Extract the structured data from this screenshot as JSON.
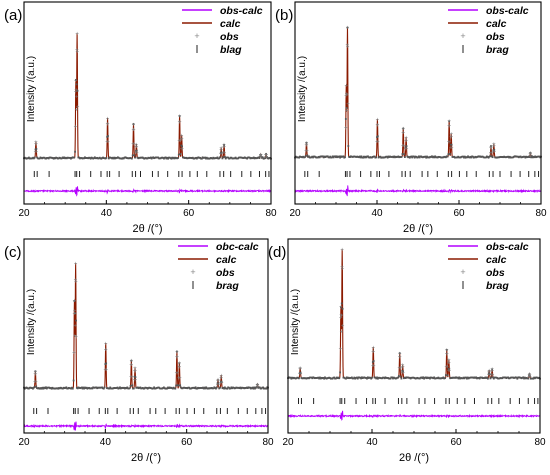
{
  "colors": {
    "obs_calc": "#b400ff",
    "calc": "#8b1a00",
    "obs": "#555555",
    "brag": "#222222",
    "frame": "#000000"
  },
  "chart_data": [
    {
      "type": "line",
      "panel_label": "(a)",
      "xlabel": "2θ /(°)",
      "ylabel": "Intensity /(a.u.)",
      "xlim": [
        20,
        80
      ],
      "x_ticks": [
        "20",
        "40",
        "60",
        "80"
      ],
      "legend_position": "top-right",
      "series": [
        {
          "name": "obs-calc",
          "style": "line"
        },
        {
          "name": "calc",
          "style": "line"
        },
        {
          "name": "obs",
          "style": "markers"
        },
        {
          "name": "blag",
          "style": "ticks"
        }
      ],
      "peaks": [
        {
          "x": 22.9,
          "h": 0.13
        },
        {
          "x": 32.6,
          "h": 0.62
        },
        {
          "x": 32.9,
          "h": 1.0
        },
        {
          "x": 40.3,
          "h": 0.32
        },
        {
          "x": 46.6,
          "h": 0.27
        },
        {
          "x": 47.3,
          "h": 0.11
        },
        {
          "x": 57.8,
          "h": 0.34
        },
        {
          "x": 58.3,
          "h": 0.18
        },
        {
          "x": 67.9,
          "h": 0.08
        },
        {
          "x": 68.6,
          "h": 0.11
        },
        {
          "x": 77.5,
          "h": 0.03
        },
        {
          "x": 78.8,
          "h": 0.03
        }
      ],
      "bragg_positions": [
        22.5,
        23.2,
        26.1,
        32.4,
        32.8,
        33.5,
        36.2,
        38.7,
        40.2,
        40.8,
        43.1,
        46.3,
        47.1,
        48.3,
        51.2,
        52.6,
        54.9,
        57.6,
        58.4,
        60.3,
        62.1,
        64.4,
        67.6,
        68.5,
        70.2,
        72.9,
        75.1,
        77.2,
        78.7,
        79.5
      ]
    },
    {
      "type": "line",
      "panel_label": "(b)",
      "xlabel": "2θ /(°)",
      "ylabel": "Intensity /(a.u.)",
      "xlim": [
        20,
        80
      ],
      "x_ticks": [
        "20",
        "40",
        "60",
        "80"
      ],
      "legend_position": "top-right",
      "series": [
        {
          "name": "obs-calc",
          "style": "line"
        },
        {
          "name": "calc",
          "style": "line"
        },
        {
          "name": "obs",
          "style": "markers"
        },
        {
          "name": "brag",
          "style": "ticks"
        }
      ],
      "peaks": [
        {
          "x": 22.8,
          "h": 0.11
        },
        {
          "x": 32.5,
          "h": 0.55
        },
        {
          "x": 32.8,
          "h": 1.0
        },
        {
          "x": 40.1,
          "h": 0.29
        },
        {
          "x": 46.4,
          "h": 0.22
        },
        {
          "x": 47.1,
          "h": 0.15
        },
        {
          "x": 57.6,
          "h": 0.28
        },
        {
          "x": 58.1,
          "h": 0.18
        },
        {
          "x": 67.8,
          "h": 0.08
        },
        {
          "x": 68.5,
          "h": 0.1
        },
        {
          "x": 77.4,
          "h": 0.03
        }
      ],
      "bragg_positions": [
        22.4,
        23.1,
        25.9,
        32.3,
        32.7,
        33.4,
        36.0,
        38.5,
        40.0,
        40.6,
        42.9,
        46.1,
        46.9,
        48.1,
        51.0,
        52.4,
        54.7,
        57.4,
        58.2,
        60.1,
        61.9,
        64.2,
        67.4,
        68.3,
        70.0,
        72.7,
        74.9,
        77.0,
        78.5,
        79.4
      ]
    },
    {
      "type": "line",
      "panel_label": "(c)",
      "xlabel": "2θ /(°)",
      "ylabel": "Intensity /(a.u.)",
      "xlim": [
        20,
        80
      ],
      "x_ticks": [
        "20",
        "40",
        "60",
        "80"
      ],
      "legend_position": "top-right",
      "series": [
        {
          "name": "obc-calc",
          "style": "line"
        },
        {
          "name": "calc",
          "style": "line"
        },
        {
          "name": "obs",
          "style": "markers"
        },
        {
          "name": "brag",
          "style": "ticks"
        }
      ],
      "peaks": [
        {
          "x": 22.8,
          "h": 0.13
        },
        {
          "x": 32.4,
          "h": 0.7
        },
        {
          "x": 32.7,
          "h": 1.0
        },
        {
          "x": 40.1,
          "h": 0.36
        },
        {
          "x": 46.4,
          "h": 0.22
        },
        {
          "x": 47.3,
          "h": 0.16
        },
        {
          "x": 57.6,
          "h": 0.29
        },
        {
          "x": 58.2,
          "h": 0.2
        },
        {
          "x": 67.7,
          "h": 0.07
        },
        {
          "x": 68.5,
          "h": 0.1
        },
        {
          "x": 77.4,
          "h": 0.03
        }
      ],
      "bragg_positions": [
        22.4,
        23.1,
        25.9,
        32.2,
        32.6,
        33.3,
        36.0,
        38.5,
        40.0,
        40.6,
        42.9,
        46.1,
        46.9,
        48.1,
        51.0,
        52.4,
        54.7,
        57.4,
        58.2,
        60.1,
        61.9,
        64.2,
        67.4,
        68.3,
        70.0,
        72.7,
        74.9,
        77.0,
        78.5,
        79.4
      ]
    },
    {
      "type": "line",
      "panel_label": "(d)",
      "xlabel": "2θ /(°)",
      "ylabel": "Intensity /(a.u.)",
      "xlim": [
        20,
        80
      ],
      "x_ticks": [
        "20",
        "40",
        "60",
        "80"
      ],
      "legend_position": "top-right",
      "series": [
        {
          "name": "obs-calc",
          "style": "line"
        },
        {
          "name": "calc",
          "style": "line"
        },
        {
          "name": "obs",
          "style": "markers"
        },
        {
          "name": "brag",
          "style": "ticks"
        }
      ],
      "peaks": [
        {
          "x": 22.9,
          "h": 0.08
        },
        {
          "x": 32.6,
          "h": 0.55
        },
        {
          "x": 32.9,
          "h": 1.0
        },
        {
          "x": 40.3,
          "h": 0.24
        },
        {
          "x": 46.6,
          "h": 0.19
        },
        {
          "x": 47.3,
          "h": 0.1
        },
        {
          "x": 57.8,
          "h": 0.22
        },
        {
          "x": 58.3,
          "h": 0.14
        },
        {
          "x": 67.9,
          "h": 0.06
        },
        {
          "x": 68.6,
          "h": 0.07
        },
        {
          "x": 77.5,
          "h": 0.03
        }
      ],
      "bragg_positions": [
        22.5,
        23.2,
        26.1,
        32.4,
        32.8,
        33.5,
        36.2,
        38.7,
        40.2,
        40.8,
        43.1,
        46.3,
        47.1,
        48.3,
        51.2,
        52.6,
        54.9,
        57.6,
        58.4,
        60.3,
        62.1,
        64.4,
        67.6,
        68.5,
        70.2,
        72.9,
        75.1,
        77.2,
        78.7,
        79.5
      ]
    }
  ]
}
